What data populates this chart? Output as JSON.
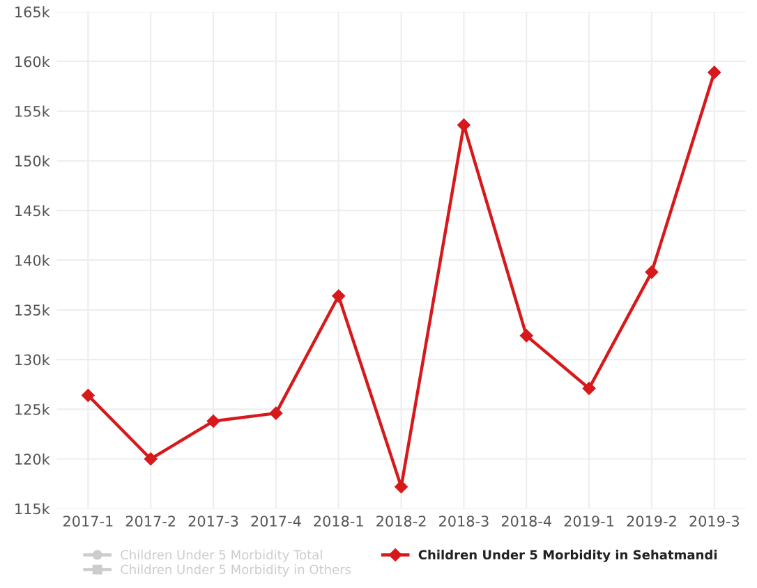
{
  "chart_data": {
    "type": "line",
    "categories": [
      "2017-1",
      "2017-2",
      "2017-3",
      "2017-4",
      "2018-1",
      "2018-2",
      "2018-3",
      "2018-4",
      "2019-1",
      "2019-2",
      "2019-3"
    ],
    "series": [
      {
        "name": "Children Under 5 Morbidity Total",
        "color": "#cccccc",
        "marker": "circle",
        "values": [
          null,
          null,
          null,
          null,
          null,
          null,
          null,
          null,
          null,
          null,
          null
        ]
      },
      {
        "name": "Children Under 5 Morbidity in Others",
        "color": "#cccccc",
        "marker": "square",
        "values": [
          null,
          null,
          null,
          null,
          null,
          null,
          null,
          null,
          null,
          null,
          null
        ]
      },
      {
        "name": "Children Under 5 Morbidity in Sehatmandi",
        "color": "#d7191c",
        "marker": "diamond",
        "values": [
          126400,
          120000,
          123800,
          124600,
          136400,
          117200,
          153600,
          132400,
          127100,
          138800,
          158900
        ]
      }
    ],
    "ylim": [
      115000,
      165000
    ],
    "yticks": [
      {
        "value": 115000,
        "label": "115k"
      },
      {
        "value": 120000,
        "label": "120k"
      },
      {
        "value": 125000,
        "label": "125k"
      },
      {
        "value": 130000,
        "label": "130k"
      },
      {
        "value": 135000,
        "label": "135k"
      },
      {
        "value": 140000,
        "label": "140k"
      },
      {
        "value": 145000,
        "label": "145k"
      },
      {
        "value": 150000,
        "label": "150k"
      },
      {
        "value": 155000,
        "label": "155k"
      },
      {
        "value": 160000,
        "label": "160k"
      },
      {
        "value": 165000,
        "label": "165k"
      }
    ],
    "grid": true,
    "legend": "bottom",
    "line_style": "solid"
  }
}
